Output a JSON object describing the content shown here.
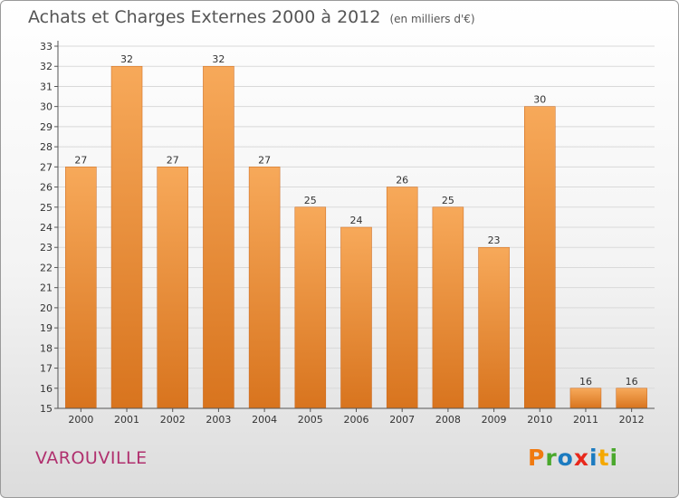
{
  "title": {
    "main": "Achats et Charges Externes 2000 à 2012",
    "unit": "(en milliers d'€)"
  },
  "commune": "VAROUVILLE",
  "logo": {
    "text": "Proxiti",
    "letters": [
      "P",
      "r",
      "o",
      "x",
      "i",
      "t",
      "i"
    ],
    "colors": [
      "#f07a10",
      "#4aa82c",
      "#1c7bc0",
      "#e8281c",
      "#1c7bc0",
      "#f5a800",
      "#4aa82c"
    ]
  },
  "colors": {
    "bar_light": "#f7a95a",
    "bar_dark": "#d8741e",
    "grid": "#d9d9d9",
    "axis": "#555555"
  },
  "chart_data": {
    "type": "bar",
    "title": "Achats et Charges Externes 2000 à 2012",
    "xlabel": "",
    "ylabel": "",
    "ylim": [
      15,
      33
    ],
    "yticks": [
      15,
      16,
      17,
      18,
      19,
      20,
      21,
      22,
      23,
      24,
      25,
      26,
      27,
      28,
      29,
      30,
      31,
      32,
      33
    ],
    "categories": [
      "2000",
      "2001",
      "2002",
      "2003",
      "2004",
      "2005",
      "2006",
      "2007",
      "2008",
      "2009",
      "2010",
      "2011",
      "2012"
    ],
    "values": [
      27,
      32,
      27,
      32,
      27,
      25,
      24,
      26,
      25,
      23,
      30,
      16,
      16
    ],
    "grid": true,
    "legend": "none"
  }
}
